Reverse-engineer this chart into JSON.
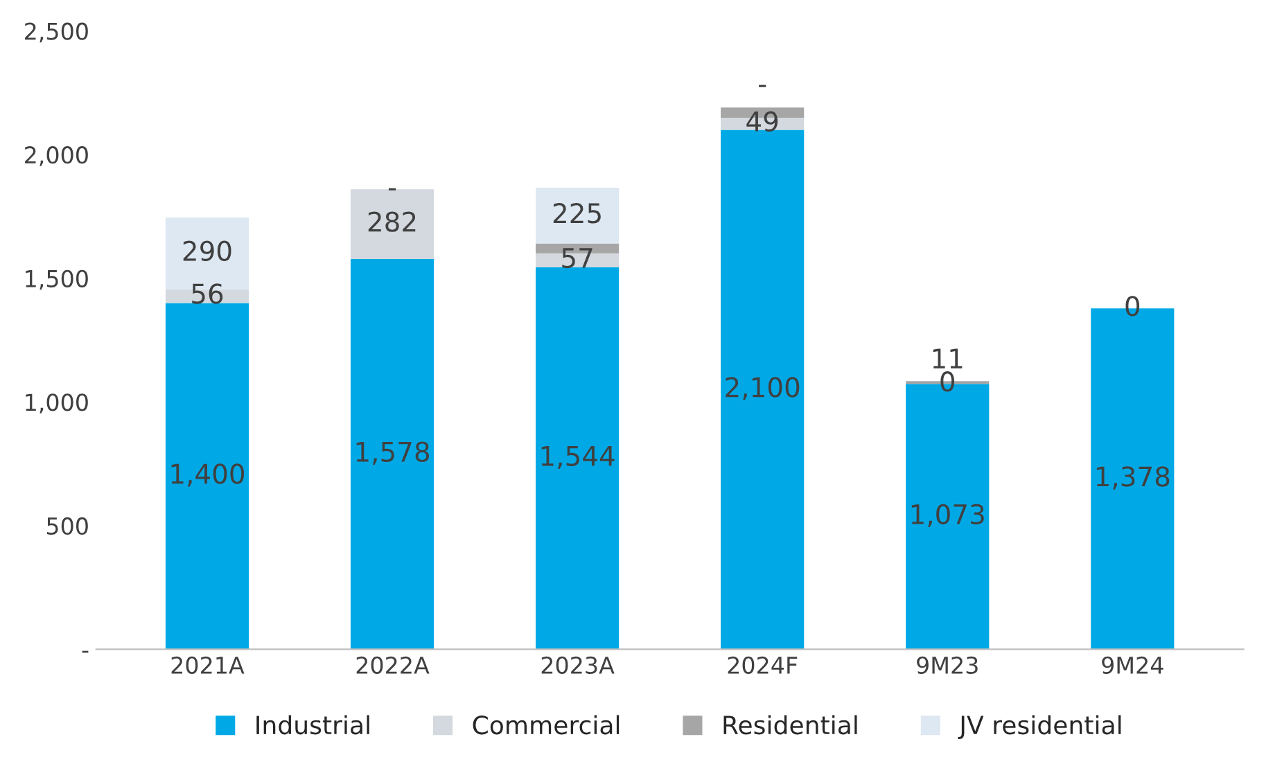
{
  "chart_data": {
    "type": "bar",
    "stacked": true,
    "categories": [
      "2021A",
      "2022A",
      "2023A",
      "2024F",
      "9M23",
      "9M24"
    ],
    "series": [
      {
        "name": "Industrial",
        "color": "#00a9e6",
        "values": [
          1400,
          1578,
          1544,
          2100,
          1073,
          1378
        ],
        "value_labels": [
          "1,400",
          "1,578",
          "1,544",
          "2,100",
          "1,073",
          "1,378"
        ]
      },
      {
        "name": "Commercial",
        "color": "#d3d9df",
        "values": [
          56,
          282,
          57,
          49,
          0,
          0
        ],
        "value_labels": [
          "56",
          "282",
          "57",
          "49",
          "0",
          "0"
        ]
      },
      {
        "name": "Residential",
        "color": "#a6a6a6",
        "values": [
          null,
          null,
          40,
          41,
          11,
          0
        ],
        "value_labels": [
          null,
          null,
          null,
          null,
          "11",
          null
        ]
      },
      {
        "name": "JV residential",
        "color": "#dde8f3",
        "values": [
          290,
          0,
          225,
          0,
          0,
          0
        ],
        "value_labels": [
          "290",
          "-",
          "225",
          "-",
          null,
          null
        ]
      }
    ],
    "ylim": [
      0,
      2500
    ],
    "yticks": [
      {
        "value": 0,
        "label": "-"
      },
      {
        "value": 500,
        "label": "500"
      },
      {
        "value": 1000,
        "label": "1,000"
      },
      {
        "value": 1500,
        "label": "1,500"
      },
      {
        "value": 2000,
        "label": "2,000"
      },
      {
        "value": 2500,
        "label": "2,500"
      }
    ],
    "grid": false,
    "legend": "bottom"
  }
}
